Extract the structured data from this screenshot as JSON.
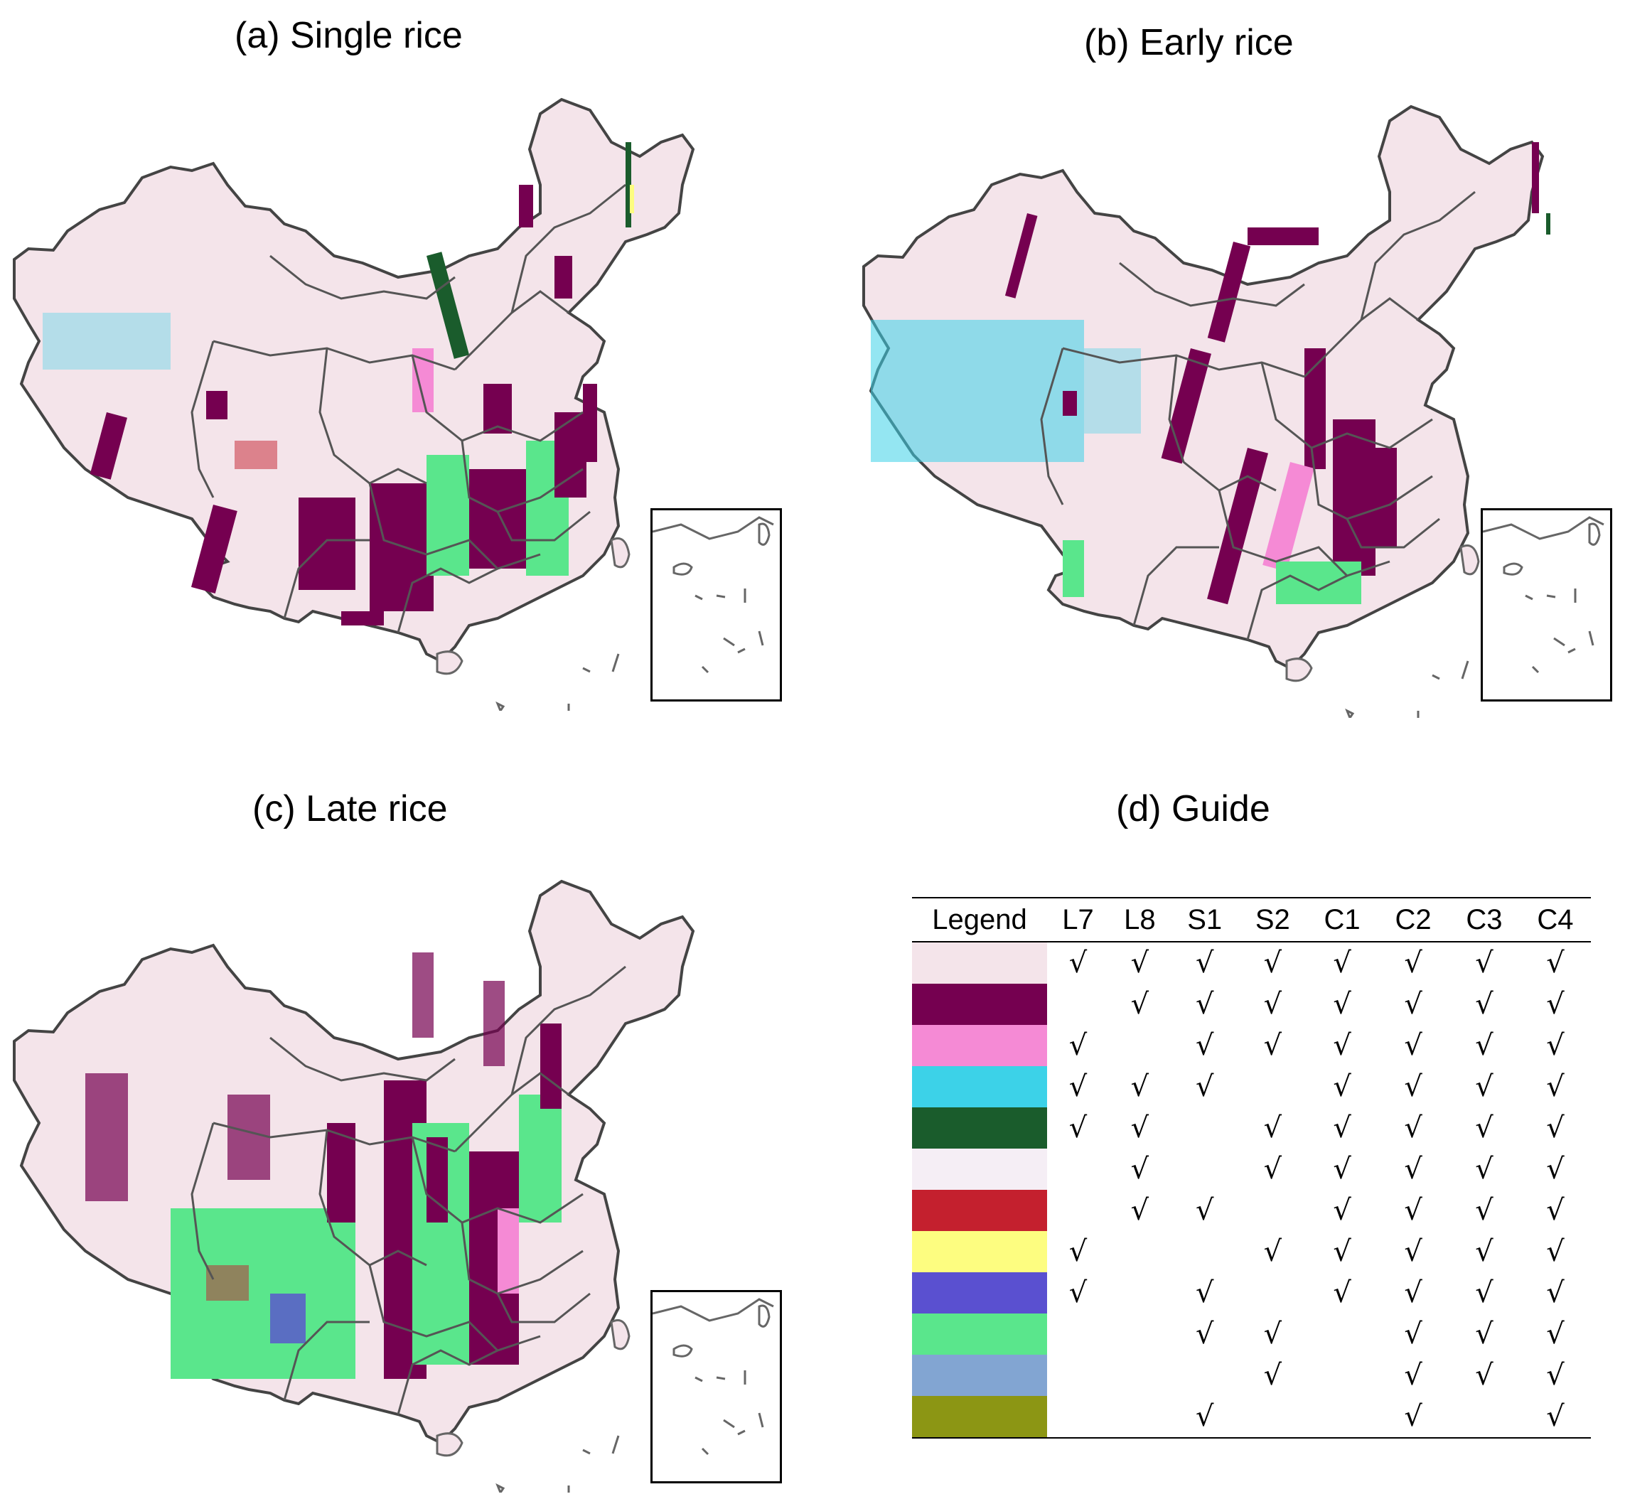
{
  "panels": {
    "a_title": "(a) Single rice",
    "b_title": "(b) Early rice",
    "c_title": "(c) Late rice",
    "d_title": "(d) Guide"
  },
  "guide": {
    "header": [
      "Legend",
      "L7",
      "L8",
      "S1",
      "S2",
      "C1",
      "C2",
      "C3",
      "C4"
    ],
    "check_symbol": "√",
    "rows": [
      {
        "color": "#f4e4ea",
        "checks": [
          1,
          1,
          1,
          1,
          1,
          1,
          1,
          1
        ]
      },
      {
        "color": "#750050",
        "checks": [
          0,
          1,
          1,
          1,
          1,
          1,
          1,
          1
        ]
      },
      {
        "color": "#f58ad5",
        "checks": [
          1,
          0,
          1,
          1,
          1,
          1,
          1,
          1
        ]
      },
      {
        "color": "#3cd2e8",
        "checks": [
          1,
          1,
          1,
          0,
          1,
          1,
          1,
          1
        ]
      },
      {
        "color": "#1a5c2c",
        "checks": [
          1,
          1,
          0,
          1,
          1,
          1,
          1,
          1
        ]
      },
      {
        "color": "#f5eef5",
        "checks": [
          0,
          1,
          0,
          1,
          1,
          1,
          1,
          1
        ]
      },
      {
        "color": "#c4202e",
        "checks": [
          0,
          1,
          1,
          0,
          1,
          1,
          1,
          1
        ]
      },
      {
        "color": "#fdfd80",
        "checks": [
          1,
          0,
          0,
          1,
          1,
          1,
          1,
          1
        ]
      },
      {
        "color": "#5a50d0",
        "checks": [
          1,
          0,
          1,
          0,
          1,
          1,
          1,
          1
        ]
      },
      {
        "color": "#5ae68c",
        "checks": [
          0,
          0,
          1,
          1,
          0,
          1,
          1,
          1
        ]
      },
      {
        "color": "#82a5d2",
        "checks": [
          0,
          0,
          0,
          1,
          0,
          1,
          1,
          1
        ]
      },
      {
        "color": "#8c9614",
        "checks": [
          0,
          0,
          1,
          0,
          0,
          1,
          0,
          1
        ]
      }
    ]
  }
}
